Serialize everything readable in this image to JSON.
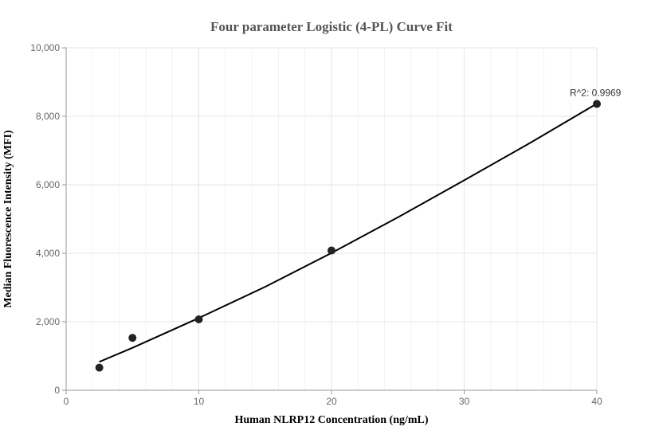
{
  "chart_data": {
    "type": "scatter",
    "title": "Four parameter Logistic (4-PL) Curve Fit",
    "xlabel": "Human NLRP12 Concentration (ng/mL)",
    "ylabel": "Median Fluorescence Intensity (MFI)",
    "xlim": [
      0,
      40
    ],
    "ylim": [
      0,
      10000
    ],
    "x_ticks": [
      0,
      10,
      20,
      30,
      40
    ],
    "x_tick_labels": [
      "0",
      "10",
      "20",
      "30",
      "40"
    ],
    "y_ticks": [
      0,
      2000,
      4000,
      6000,
      8000,
      10000
    ],
    "y_tick_labels": [
      "0",
      "2,000",
      "4,000",
      "6,000",
      "8,000",
      "10,000"
    ],
    "grid": true,
    "points": {
      "x": [
        2.5,
        5,
        10,
        20,
        40
      ],
      "y": [
        660,
        1530,
        2070,
        4080,
        8360
      ]
    },
    "fit_curve": {
      "x": [
        2.5,
        5,
        10,
        15,
        20,
        25,
        30,
        35,
        40
      ],
      "y": [
        830,
        1240,
        2110,
        3020,
        4010,
        5050,
        6130,
        7230,
        8370
      ]
    },
    "annotation": "R^2: 0.9969",
    "colors": {
      "points": "#222222",
      "fit_line": "#000000"
    }
  }
}
